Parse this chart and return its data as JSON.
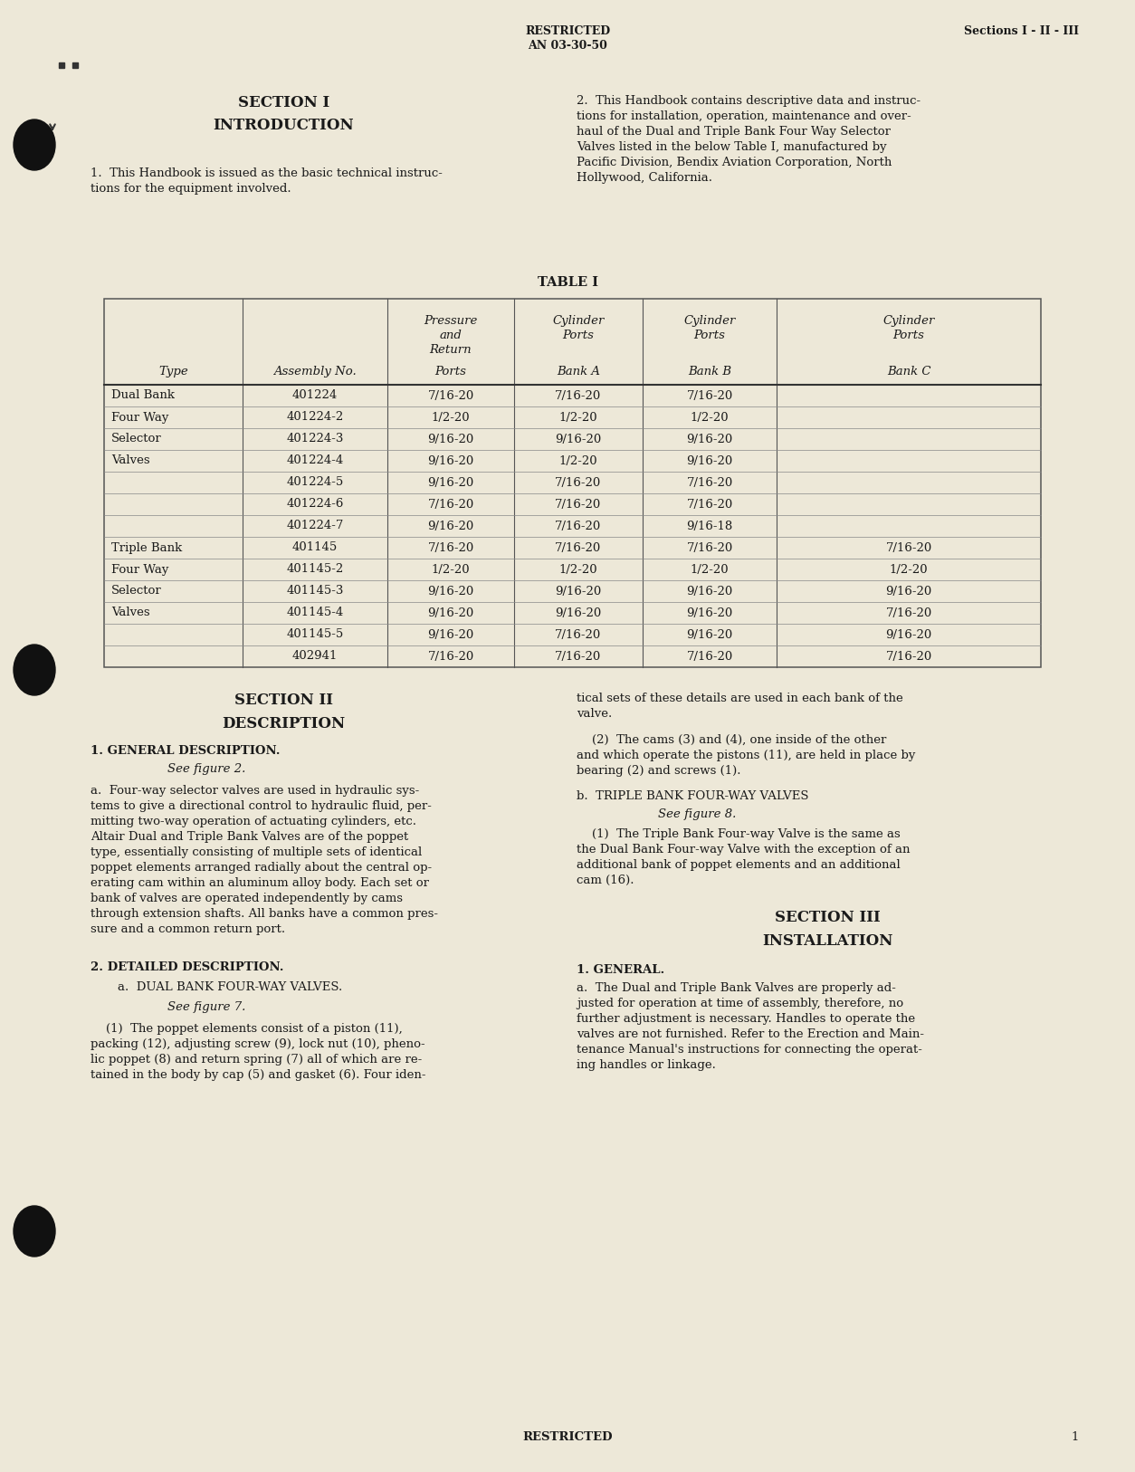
{
  "bg_color": "#ede8d8",
  "text_color": "#1a1a1a",
  "table_rows": [
    [
      "Dual Bank",
      "401224",
      "7/16-20",
      "7/16-20",
      "7/16-20",
      ""
    ],
    [
      "Four Way",
      "401224-2",
      "1/2-20",
      "1/2-20",
      "1/2-20",
      ""
    ],
    [
      "Selector",
      "401224-3",
      "9/16-20",
      "9/16-20",
      "9/16-20",
      ""
    ],
    [
      "Valves",
      "401224-4",
      "9/16-20",
      "1/2-20",
      "9/16-20",
      ""
    ],
    [
      "",
      "401224-5",
      "9/16-20",
      "7/16-20",
      "7/16-20",
      ""
    ],
    [
      "",
      "401224-6",
      "7/16-20",
      "7/16-20",
      "7/16-20",
      ""
    ],
    [
      "",
      "401224-7",
      "9/16-20",
      "7/16-20",
      "9/16-18",
      ""
    ],
    [
      "Triple Bank",
      "401145",
      "7/16-20",
      "7/16-20",
      "7/16-20",
      "7/16-20"
    ],
    [
      "Four Way",
      "401145-2",
      "1/2-20",
      "1/2-20",
      "1/2-20",
      "1/2-20"
    ],
    [
      "Selector",
      "401145-3",
      "9/16-20",
      "9/16-20",
      "9/16-20",
      "9/16-20"
    ],
    [
      "Valves",
      "401145-4",
      "9/16-20",
      "9/16-20",
      "9/16-20",
      "7/16-20"
    ],
    [
      "",
      "401145-5",
      "9/16-20",
      "7/16-20",
      "9/16-20",
      "9/16-20"
    ],
    [
      "",
      "402941",
      "7/16-20",
      "7/16-20",
      "7/16-20",
      "7/16-20"
    ]
  ]
}
